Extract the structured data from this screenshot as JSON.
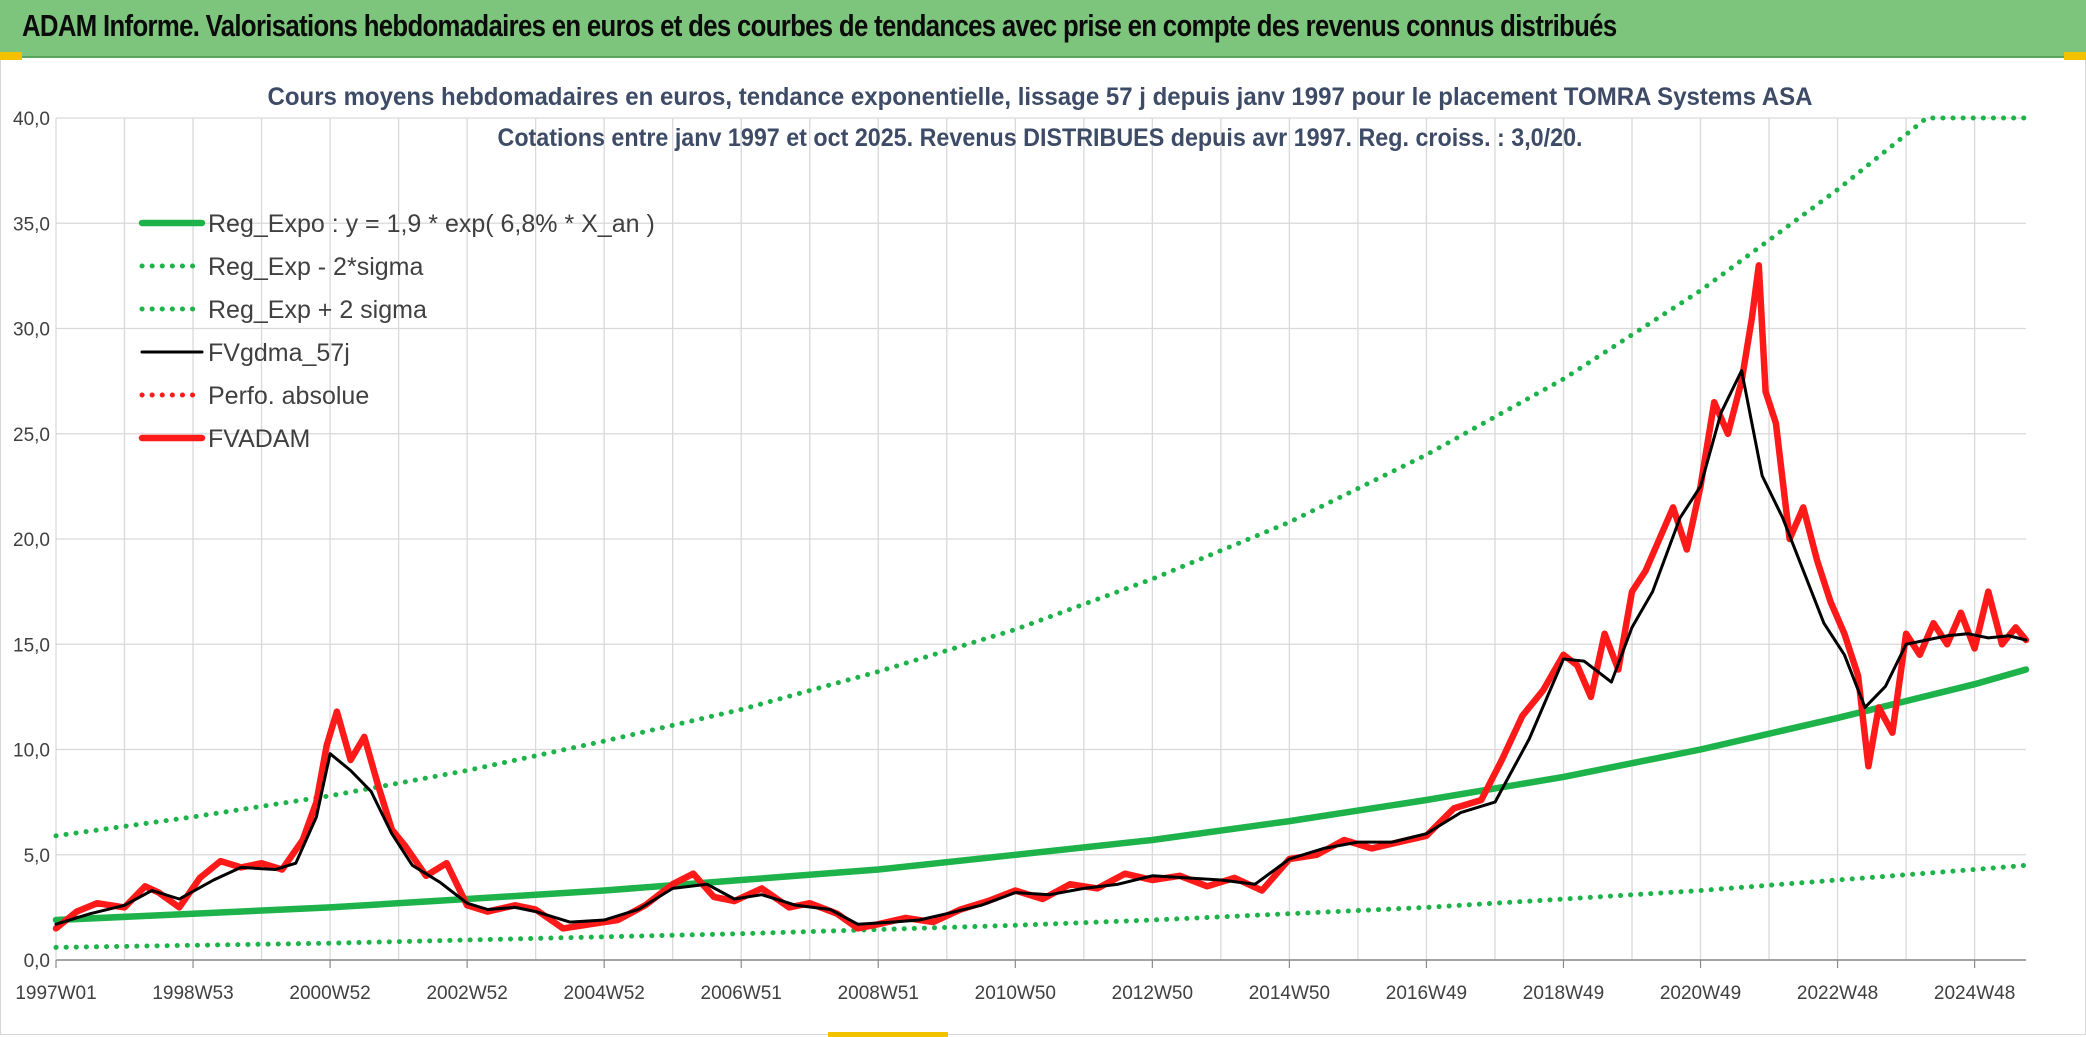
{
  "header": {
    "title": "ADAM Informe. Valorisations hebdomadaires en euros et des courbes de tendances avec prise en compte des revenus connus distribués"
  },
  "colors": {
    "banner": "#7dc47c",
    "accent_yellow": "#f2c200",
    "reg_expo": "#1db34a",
    "sigma": "#1db34a",
    "fvgdma": "#000000",
    "fvadam": "#ff1a1a",
    "perfo": "#ff1a1a",
    "grid": "#d9d9d9"
  },
  "chart_data": {
    "type": "line",
    "title": "Cours moyens hebdomadaires en euros, tendance exponentielle, lissage 57 j depuis janv 1997 pour le placement TOMRA Systems ASA",
    "subtitle": "Cotations entre janv 1997 et oct 2025. Revenus DISTRIBUES depuis avr 1997. Reg. croiss. : 3,0/20.",
    "xlabel": "",
    "ylabel": "",
    "x_range": [
      1997.0,
      2025.75
    ],
    "ylim": [
      0,
      40
    ],
    "yticks": [
      "0,0",
      "5,0",
      "10,0",
      "15,0",
      "20,0",
      "25,0",
      "30,0",
      "35,0",
      "40,0"
    ],
    "xticks": [
      {
        "label": "1997W01",
        "year": 1997.0
      },
      {
        "label": "1998W53",
        "year": 1999.0
      },
      {
        "label": "2000W52",
        "year": 2001.0
      },
      {
        "label": "2002W52",
        "year": 2003.0
      },
      {
        "label": "2004W52",
        "year": 2005.0
      },
      {
        "label": "2006W51",
        "year": 2007.0
      },
      {
        "label": "2008W51",
        "year": 2009.0
      },
      {
        "label": "2010W50",
        "year": 2011.0
      },
      {
        "label": "2012W50",
        "year": 2013.0
      },
      {
        "label": "2014W50",
        "year": 2015.0
      },
      {
        "label": "2016W49",
        "year": 2017.0
      },
      {
        "label": "2018W49",
        "year": 2019.0
      },
      {
        "label": "2020W49",
        "year": 2021.0
      },
      {
        "label": "2022W48",
        "year": 2023.0
      },
      {
        "label": "2024W48",
        "year": 2025.0
      }
    ],
    "grid": true,
    "legend_position": "top-left",
    "series": [
      {
        "name": "Reg_Expo : y = 1,9 * exp( 6,8% *  X_an )",
        "style": "solid-thick",
        "color": "#1db34a",
        "x": [
          1997.0,
          1999.0,
          2001.0,
          2003.0,
          2005.0,
          2007.0,
          2009.0,
          2011.0,
          2013.0,
          2015.0,
          2017.0,
          2019.0,
          2021.0,
          2023.0,
          2025.0,
          2025.75
        ],
        "y": [
          1.9,
          2.2,
          2.5,
          2.9,
          3.3,
          3.8,
          4.3,
          5.0,
          5.7,
          6.6,
          7.6,
          8.7,
          10.0,
          11.5,
          13.1,
          13.8
        ]
      },
      {
        "name": "Reg_Exp - 2*sigma",
        "style": "dotted",
        "color": "#1db34a",
        "x": [
          1997.0,
          1999.0,
          2001.0,
          2003.0,
          2005.0,
          2007.0,
          2009.0,
          2011.0,
          2013.0,
          2015.0,
          2017.0,
          2019.0,
          2021.0,
          2023.0,
          2025.0,
          2025.75
        ],
        "y": [
          0.6,
          0.7,
          0.8,
          0.95,
          1.1,
          1.25,
          1.45,
          1.65,
          1.9,
          2.2,
          2.5,
          2.9,
          3.3,
          3.8,
          4.3,
          4.5
        ]
      },
      {
        "name": "Reg_Exp + 2 sigma",
        "style": "dotted",
        "color": "#1db34a",
        "x": [
          1997.0,
          1999.0,
          2001.0,
          2003.0,
          2005.0,
          2007.0,
          2009.0,
          2011.0,
          2013.0,
          2015.0,
          2017.0,
          2019.0,
          2021.0,
          2023.0,
          2024.3,
          2025.75
        ],
        "y": [
          5.9,
          6.8,
          7.8,
          9.0,
          10.4,
          11.9,
          13.7,
          15.7,
          18.1,
          20.8,
          24.0,
          27.6,
          31.8,
          36.6,
          40.0,
          40.0
        ]
      },
      {
        "name": "FVgdma_57j",
        "style": "solid",
        "color": "#000000",
        "x": [
          1997.0,
          1997.5,
          1998.0,
          1998.4,
          1998.8,
          1999.3,
          1999.7,
          2000.2,
          2000.5,
          2000.8,
          2001.0,
          2001.3,
          2001.6,
          2001.9,
          2002.2,
          2002.6,
          2003.0,
          2003.3,
          2003.7,
          2004.0,
          2004.5,
          2005.0,
          2005.5,
          2006.0,
          2006.5,
          2006.9,
          2007.3,
          2007.8,
          2008.3,
          2008.7,
          2009.2,
          2009.6,
          2010.0,
          2010.5,
          2011.0,
          2011.5,
          2012.0,
          2012.5,
          2013.0,
          2013.5,
          2014.0,
          2014.5,
          2015.0,
          2015.5,
          2016.0,
          2016.5,
          2017.0,
          2017.5,
          2018.0,
          2018.5,
          2019.0,
          2019.3,
          2019.7,
          2020.0,
          2020.3,
          2020.7,
          2021.0,
          2021.3,
          2021.6,
          2021.9,
          2022.2,
          2022.5,
          2022.8,
          2023.1,
          2023.4,
          2023.7,
          2024.0,
          2024.3,
          2024.6,
          2024.9,
          2025.2,
          2025.5,
          2025.75
        ],
        "y": [
          1.7,
          2.2,
          2.6,
          3.3,
          2.9,
          3.8,
          4.4,
          4.3,
          4.6,
          6.8,
          9.8,
          9.0,
          8.0,
          6.0,
          4.5,
          3.7,
          2.7,
          2.4,
          2.5,
          2.3,
          1.8,
          1.9,
          2.4,
          3.4,
          3.6,
          2.9,
          3.1,
          2.6,
          2.4,
          1.7,
          1.8,
          1.9,
          2.2,
          2.6,
          3.2,
          3.1,
          3.4,
          3.6,
          4.0,
          3.9,
          3.8,
          3.6,
          4.8,
          5.3,
          5.6,
          5.6,
          6.0,
          7.0,
          7.5,
          10.5,
          14.3,
          14.2,
          13.2,
          15.8,
          17.5,
          21.0,
          22.5,
          26.0,
          28.0,
          23.0,
          21.0,
          18.5,
          16.0,
          14.5,
          12.0,
          13.0,
          15.0,
          15.2,
          15.4,
          15.5,
          15.3,
          15.4,
          15.2
        ]
      },
      {
        "name": "Perfo. absolue",
        "style": "dotted",
        "color": "#ff1a1a",
        "x": [],
        "y": []
      },
      {
        "name": "FVADAM",
        "style": "solid-thick",
        "color": "#ff1a1a",
        "x": [
          1997.0,
          1997.3,
          1997.6,
          1998.0,
          1998.3,
          1998.5,
          1998.8,
          1999.1,
          1999.4,
          1999.7,
          2000.0,
          2000.3,
          2000.6,
          2000.8,
          2000.95,
          2001.1,
          2001.3,
          2001.5,
          2001.7,
          2001.9,
          2002.1,
          2002.4,
          2002.7,
          2003.0,
          2003.3,
          2003.7,
          2004.0,
          2004.4,
          2004.8,
          2005.2,
          2005.6,
          2006.0,
          2006.3,
          2006.6,
          2006.9,
          2007.3,
          2007.7,
          2008.0,
          2008.4,
          2008.7,
          2009.0,
          2009.4,
          2009.8,
          2010.2,
          2010.6,
          2011.0,
          2011.4,
          2011.8,
          2012.2,
          2012.6,
          2013.0,
          2013.4,
          2013.8,
          2014.2,
          2014.6,
          2015.0,
          2015.4,
          2015.8,
          2016.2,
          2016.6,
          2017.0,
          2017.4,
          2017.8,
          2018.1,
          2018.4,
          2018.7,
          2019.0,
          2019.2,
          2019.4,
          2019.6,
          2019.8,
          2020.0,
          2020.2,
          2020.4,
          2020.6,
          2020.8,
          2021.0,
          2021.2,
          2021.4,
          2021.6,
          2021.75,
          2021.85,
          2021.95,
          2022.1,
          2022.3,
          2022.5,
          2022.7,
          2022.9,
          2023.1,
          2023.3,
          2023.45,
          2023.6,
          2023.8,
          2024.0,
          2024.2,
          2024.4,
          2024.6,
          2024.8,
          2025.0,
          2025.2,
          2025.4,
          2025.6,
          2025.75
        ],
        "y": [
          1.5,
          2.3,
          2.7,
          2.5,
          3.5,
          3.2,
          2.5,
          3.9,
          4.7,
          4.4,
          4.6,
          4.3,
          5.7,
          7.5,
          10.2,
          11.8,
          9.5,
          10.6,
          8.3,
          6.2,
          5.4,
          4.0,
          4.6,
          2.6,
          2.3,
          2.6,
          2.4,
          1.5,
          1.7,
          1.9,
          2.6,
          3.6,
          4.1,
          3.0,
          2.8,
          3.4,
          2.5,
          2.7,
          2.2,
          1.5,
          1.7,
          2.0,
          1.8,
          2.4,
          2.8,
          3.3,
          2.9,
          3.6,
          3.4,
          4.1,
          3.8,
          4.0,
          3.5,
          3.9,
          3.3,
          4.8,
          5.0,
          5.7,
          5.3,
          5.6,
          5.9,
          7.2,
          7.6,
          9.5,
          11.6,
          12.8,
          14.5,
          14.0,
          12.5,
          15.5,
          13.8,
          17.5,
          18.5,
          20.0,
          21.5,
          19.5,
          22.5,
          26.5,
          25.0,
          27.5,
          30.5,
          33.0,
          27.0,
          25.5,
          20.0,
          21.5,
          19.0,
          17.0,
          15.5,
          13.5,
          9.2,
          12.0,
          10.8,
          15.5,
          14.5,
          16.0,
          15.0,
          16.5,
          14.8,
          17.5,
          15.0,
          15.8,
          15.2
        ]
      }
    ]
  }
}
